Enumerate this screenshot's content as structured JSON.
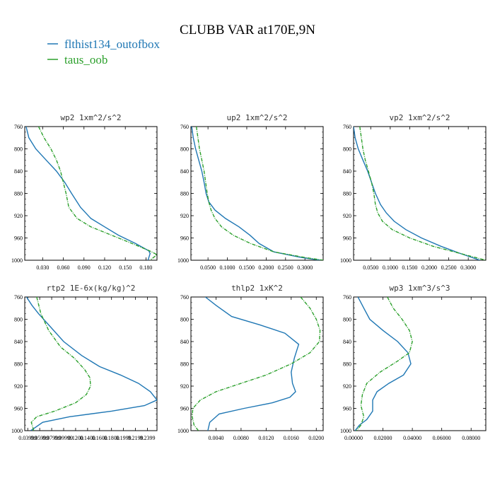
{
  "figure": {
    "title": "CLUBB VAR at170E,9N",
    "legend": [
      {
        "label": "flthist134_outofbox",
        "color": "#1f77b4"
      },
      {
        "label": "taus_oob",
        "color": "#2ca02c"
      }
    ]
  },
  "chart_data": [
    {
      "type": "line",
      "title": "wp2   1xm^2/s^2",
      "xlim": [
        0.004,
        0.196
      ],
      "ylim": [
        760,
        1000
      ],
      "y_inverted": true,
      "xticks": [
        0.03,
        0.06,
        0.09,
        0.12,
        0.15,
        0.18
      ],
      "xtick_labels": [
        "0.030",
        "0.060",
        "0.090",
        "0.120",
        "0.150",
        "0.180"
      ],
      "yticks": [
        760,
        800,
        840,
        880,
        920,
        960,
        1000
      ],
      "ytick_labels": [
        "760",
        "800",
        "840",
        "880",
        "920",
        "960",
        "1000"
      ],
      "series": [
        {
          "name": "flthist134_outofbox",
          "color": "#1f77b4",
          "x": [
            0.006,
            0.01,
            0.02,
            0.035,
            0.05,
            0.062,
            0.072,
            0.085,
            0.1,
            0.12,
            0.14,
            0.165,
            0.184,
            0.186,
            0.183
          ],
          "y": [
            760,
            780,
            800,
            820,
            840,
            860,
            880,
            905,
            925,
            940,
            955,
            970,
            983,
            988,
            1000
          ]
        },
        {
          "name": "taus_oob",
          "color": "#2ca02c",
          "x": [
            0.024,
            0.032,
            0.042,
            0.05,
            0.056,
            0.06,
            0.064,
            0.068,
            0.08,
            0.1,
            0.13,
            0.16,
            0.185,
            0.196,
            0.186
          ],
          "y": [
            760,
            780,
            800,
            820,
            840,
            860,
            880,
            905,
            925,
            940,
            955,
            970,
            983,
            990,
            1000
          ]
        }
      ]
    },
    {
      "type": "line",
      "title": "up2   1xm^2/s^2",
      "xlim": [
        0.006,
        0.347
      ],
      "ylim": [
        760,
        1000
      ],
      "y_inverted": true,
      "xticks": [
        0.05,
        0.1,
        0.15,
        0.2,
        0.25,
        0.3
      ],
      "xtick_labels": [
        "0.0500",
        "0.1000",
        "0.1500",
        "0.2000",
        "0.2500",
        "0.3000"
      ],
      "yticks": [
        760,
        800,
        840,
        880,
        920,
        960,
        1000
      ],
      "ytick_labels": [
        "760",
        "800",
        "840",
        "880",
        "920",
        "960",
        "1000"
      ],
      "series": [
        {
          "name": "flthist134_outofbox",
          "color": "#1f77b4",
          "x": [
            0.008,
            0.012,
            0.018,
            0.026,
            0.034,
            0.04,
            0.045,
            0.052,
            0.068,
            0.095,
            0.13,
            0.158,
            0.182,
            0.22,
            0.29,
            0.34
          ],
          "y": [
            760,
            780,
            800,
            820,
            840,
            860,
            880,
            895,
            910,
            925,
            940,
            955,
            970,
            985,
            995,
            1000
          ]
        },
        {
          "name": "taus_oob",
          "color": "#2ca02c",
          "x": [
            0.02,
            0.024,
            0.028,
            0.034,
            0.04,
            0.044,
            0.048,
            0.052,
            0.058,
            0.068,
            0.085,
            0.115,
            0.16,
            0.22,
            0.3,
            0.347
          ],
          "y": [
            760,
            780,
            800,
            820,
            840,
            860,
            880,
            895,
            910,
            925,
            940,
            955,
            970,
            985,
            995,
            1000
          ]
        }
      ]
    },
    {
      "type": "line",
      "title": "vp2   1xm^2/s^2",
      "xlim": [
        0.006,
        0.345
      ],
      "ylim": [
        760,
        1000
      ],
      "y_inverted": true,
      "xticks": [
        0.05,
        0.1,
        0.15,
        0.2,
        0.25,
        0.3
      ],
      "xtick_labels": [
        "0.0500",
        "0.1000",
        "0.1500",
        "0.2000",
        "0.2500",
        "0.3000"
      ],
      "yticks": [
        760,
        800,
        840,
        880,
        920,
        960,
        1000
      ],
      "ytick_labels": [
        "760",
        "800",
        "840",
        "880",
        "920",
        "960",
        "1000"
      ],
      "series": [
        {
          "name": "flthist134_outofbox",
          "color": "#1f77b4",
          "x": [
            0.006,
            0.01,
            0.018,
            0.03,
            0.042,
            0.052,
            0.062,
            0.075,
            0.09,
            0.11,
            0.14,
            0.18,
            0.23,
            0.28,
            0.33
          ],
          "y": [
            760,
            780,
            800,
            820,
            840,
            860,
            880,
            900,
            915,
            930,
            945,
            960,
            975,
            988,
            1000
          ]
        },
        {
          "name": "taus_oob",
          "color": "#2ca02c",
          "x": [
            0.022,
            0.026,
            0.03,
            0.036,
            0.044,
            0.052,
            0.058,
            0.062,
            0.068,
            0.08,
            0.105,
            0.15,
            0.21,
            0.28,
            0.345
          ],
          "y": [
            760,
            780,
            800,
            820,
            840,
            860,
            880,
            900,
            915,
            930,
            945,
            960,
            975,
            988,
            1000
          ]
        }
      ]
    },
    {
      "type": "line",
      "title": "rtp2   1E-6x(kg/kg)^2",
      "xlim": [
        0.035,
        0.256
      ],
      "ylim": [
        760,
        1000
      ],
      "y_inverted": true,
      "xticks": [
        0.04,
        0.06,
        0.08,
        0.1,
        0.12,
        0.14,
        0.16,
        0.18,
        0.2,
        0.22,
        0.24
      ],
      "xtick_labels": [
        "0.03999",
        "0.05999",
        "0.07999",
        "0.09999",
        "0.1200",
        "0.1400",
        "0.1600",
        "0.1800",
        "0.1999",
        "0.2199",
        "0.2399"
      ],
      "yticks": [
        760,
        800,
        840,
        880,
        920,
        960,
        1000
      ],
      "ytick_labels": [
        "760",
        "800",
        "840",
        "880",
        "920",
        "960",
        "1000"
      ],
      "series": [
        {
          "name": "flthist134_outofbox",
          "color": "#1f77b4",
          "x": [
            0.038,
            0.047,
            0.058,
            0.075,
            0.1,
            0.13,
            0.16,
            0.195,
            0.225,
            0.245,
            0.256,
            0.235,
            0.18,
            0.11,
            0.065,
            0.045
          ],
          "y": [
            760,
            775,
            790,
            810,
            840,
            865,
            885,
            900,
            915,
            930,
            945,
            955,
            965,
            975,
            985,
            1000
          ]
        },
        {
          "name": "taus_oob",
          "color": "#2ca02c",
          "x": [
            0.055,
            0.062,
            0.075,
            0.095,
            0.118,
            0.135,
            0.144,
            0.145,
            0.138,
            0.12,
            0.085,
            0.055,
            0.046,
            0.05
          ],
          "y": [
            760,
            790,
            820,
            850,
            870,
            890,
            905,
            920,
            935,
            950,
            965,
            975,
            985,
            1000
          ]
        }
      ]
    },
    {
      "type": "line",
      "title": "thlp2   1xK^2",
      "xlim": [
        0.0,
        0.0211
      ],
      "ylim": [
        760,
        1000
      ],
      "y_inverted": true,
      "xticks": [
        0.004,
        0.008,
        0.012,
        0.016,
        0.02
      ],
      "xtick_labels": [
        "0.0040",
        "0.0080",
        "0.0120",
        "0.0160",
        "0.0200"
      ],
      "yticks": [
        760,
        800,
        840,
        880,
        920,
        960,
        1000
      ],
      "ytick_labels": [
        "760",
        "800",
        "840",
        "880",
        "920",
        "960",
        "1000"
      ],
      "series": [
        {
          "name": "flthist134_outofbox",
          "color": "#1f77b4",
          "x": [
            0.0023,
            0.004,
            0.0065,
            0.011,
            0.015,
            0.0172,
            0.0165,
            0.016,
            0.0162,
            0.0167,
            0.0158,
            0.013,
            0.0085,
            0.0045,
            0.003,
            0.0027
          ],
          "y": [
            760,
            775,
            795,
            810,
            825,
            845,
            870,
            895,
            915,
            930,
            940,
            950,
            960,
            970,
            985,
            1000
          ]
        },
        {
          "name": "taus_oob",
          "color": "#2ca02c",
          "x": [
            0.0175,
            0.019,
            0.02,
            0.0206,
            0.0205,
            0.019,
            0.016,
            0.012,
            0.008,
            0.004,
            0.0015,
            0.0003,
            0.0002,
            0.0005,
            0.0012
          ],
          "y": [
            760,
            780,
            800,
            820,
            840,
            860,
            880,
            900,
            915,
            930,
            945,
            960,
            975,
            990,
            1000
          ]
        }
      ]
    },
    {
      "type": "line",
      "title": "wp3   1xm^3/s^3",
      "xlim": [
        0.0,
        0.09
      ],
      "ylim": [
        760,
        1000
      ],
      "y_inverted": true,
      "xticks": [
        0.0,
        0.02,
        0.04,
        0.06,
        0.08
      ],
      "xtick_labels": [
        "0.00000",
        "0.02000",
        "0.04000",
        "0.06000",
        "0.08000"
      ],
      "yticks": [
        760,
        800,
        840,
        880,
        920,
        960,
        1000
      ],
      "ytick_labels": [
        "760",
        "800",
        "840",
        "880",
        "920",
        "960",
        "1000"
      ],
      "series": [
        {
          "name": "flthist134_outofbox",
          "color": "#1f77b4",
          "x": [
            0.003,
            0.007,
            0.011,
            0.02,
            0.03,
            0.037,
            0.039,
            0.034,
            0.024,
            0.016,
            0.013,
            0.013,
            0.009,
            0.004,
            0.001
          ],
          "y": [
            760,
            780,
            800,
            820,
            840,
            860,
            880,
            900,
            915,
            930,
            945,
            965,
            980,
            990,
            1000
          ]
        },
        {
          "name": "taus_oob",
          "color": "#2ca02c",
          "x": [
            0.023,
            0.027,
            0.033,
            0.038,
            0.04,
            0.038,
            0.03,
            0.018,
            0.009,
            0.006,
            0.005,
            0.007,
            0.005,
            0.002
          ],
          "y": [
            760,
            780,
            800,
            820,
            840,
            860,
            875,
            895,
            915,
            935,
            955,
            975,
            990,
            1000
          ]
        }
      ]
    }
  ]
}
